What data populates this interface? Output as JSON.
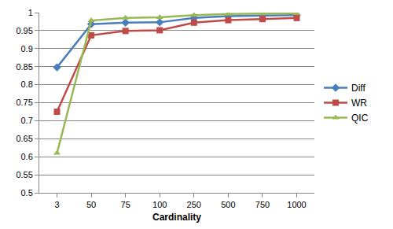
{
  "chart_data": {
    "type": "line",
    "x_label": "Cardinality",
    "categories": [
      "3",
      "50",
      "75",
      "100",
      "250",
      "500",
      "750",
      "1000"
    ],
    "series": [
      {
        "name": "Diff",
        "color": "#4a7ebb",
        "marker": "diamond",
        "values": [
          0.848,
          0.968,
          0.972,
          0.973,
          0.985,
          0.99,
          0.992,
          0.993
        ]
      },
      {
        "name": "WR",
        "color": "#be4b48",
        "marker": "square",
        "values": [
          0.725,
          0.937,
          0.949,
          0.951,
          0.972,
          0.979,
          0.982,
          0.985
        ]
      },
      {
        "name": "QIC",
        "color": "#98b954",
        "marker": "triangle-up",
        "values": [
          0.61,
          0.978,
          0.985,
          0.987,
          0.993,
          0.996,
          0.997,
          0.998
        ]
      }
    ],
    "ylim": [
      0.5,
      1
    ],
    "yticks": [
      0.5,
      0.55,
      0.6,
      0.65,
      0.7,
      0.75,
      0.8,
      0.85,
      0.9,
      0.95,
      1
    ],
    "grid": true,
    "legend": "right"
  }
}
